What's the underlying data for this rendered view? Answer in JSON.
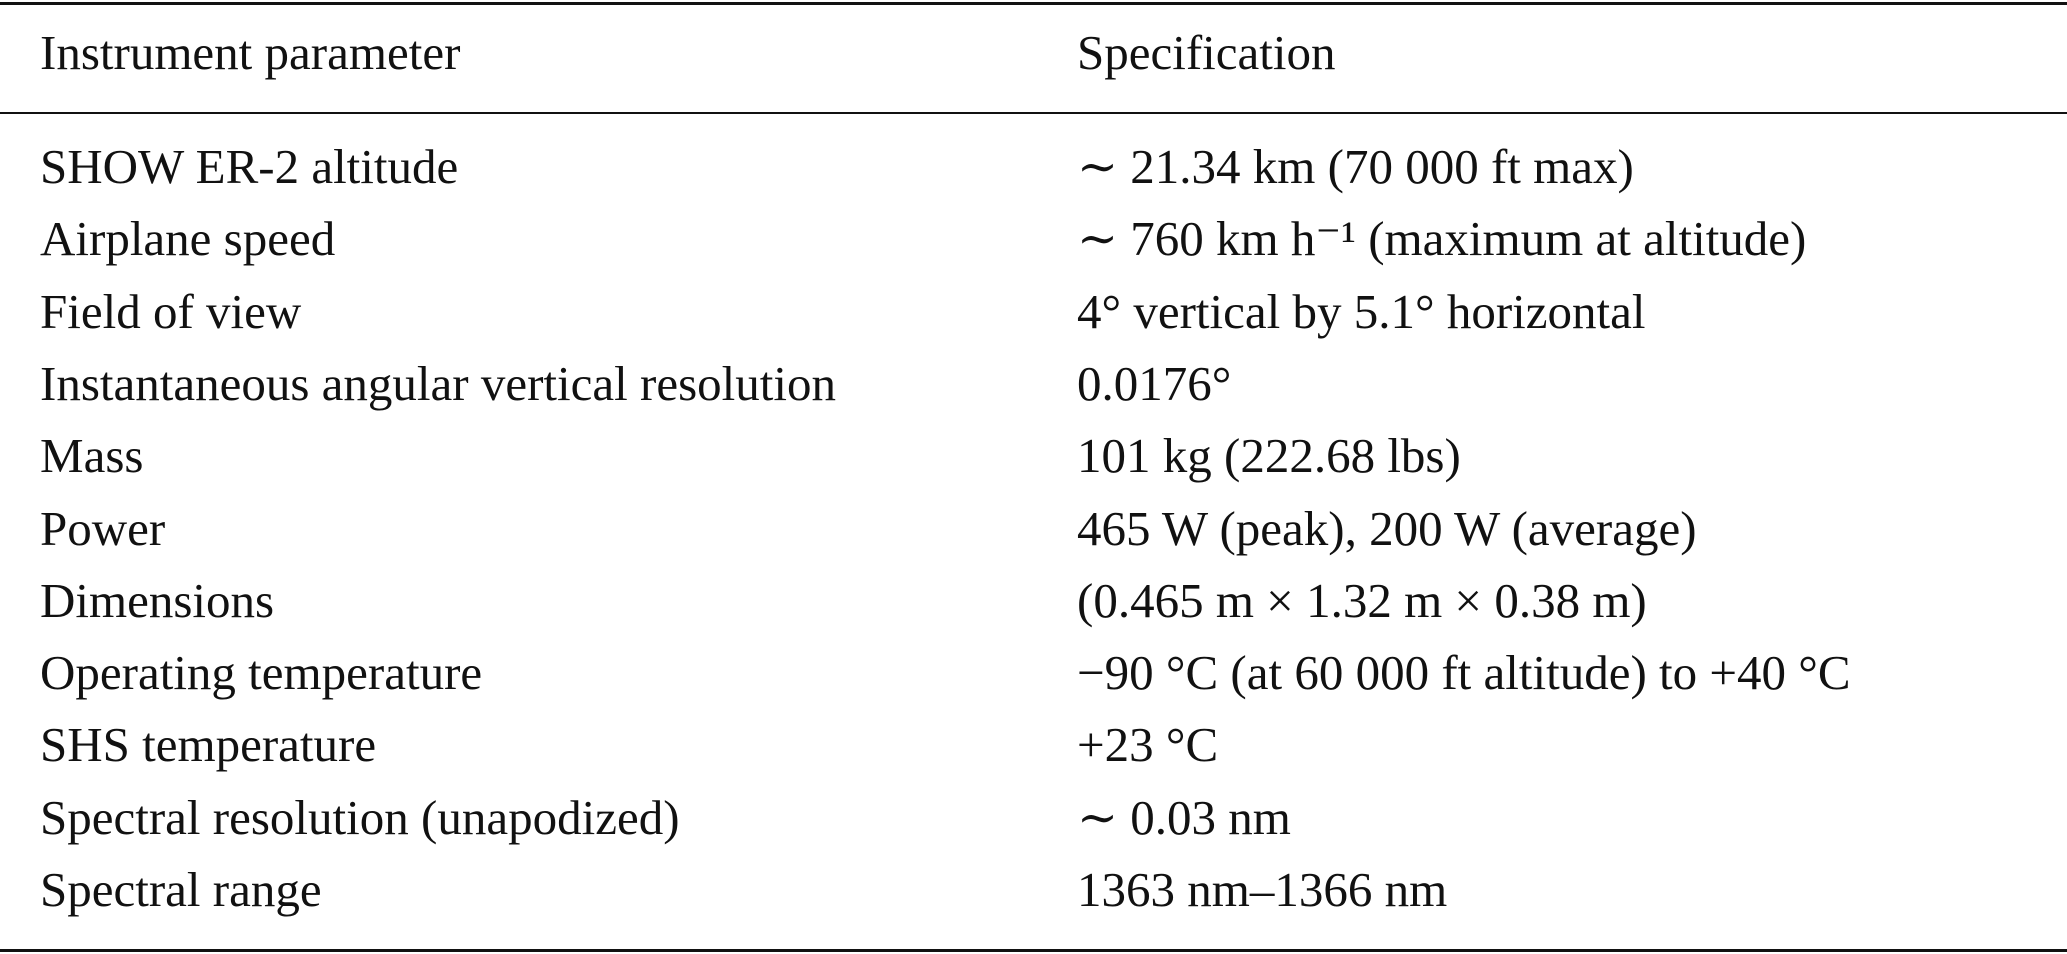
{
  "table": {
    "header": [
      "Instrument parameter",
      "Specification"
    ],
    "rows": [
      [
        "SHOW ER-2 altitude",
        "∼ 21.34 km (70 000 ft max)"
      ],
      [
        "Airplane speed",
        "∼ 760 km h⁻¹ (maximum at altitude)"
      ],
      [
        "Field of view",
        "4° vertical by 5.1° horizontal"
      ],
      [
        "Instantaneous angular vertical resolution",
        "0.0176°"
      ],
      [
        "Mass",
        "101 kg (222.68 lbs)"
      ],
      [
        "Power",
        "465 W (peak), 200 W (average)"
      ],
      [
        "Dimensions",
        "(0.465 m × 1.32 m × 0.38 m)"
      ],
      [
        "Operating temperature",
        "−90 °C (at 60 000 ft altitude) to +40 °C"
      ],
      [
        "SHS temperature",
        "+23 °C"
      ],
      [
        "Spectral resolution (unapodized)",
        "∼ 0.03 nm"
      ],
      [
        "Spectral range",
        "1363 nm–1366 nm"
      ]
    ]
  }
}
